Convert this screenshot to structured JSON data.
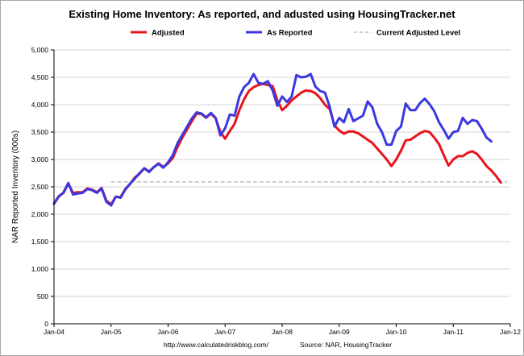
{
  "chart_data": {
    "type": "line",
    "title": "Existing Home Inventory: As reported, and adusted using HousingTracker.net",
    "xlabel": "",
    "ylabel": "NAR Reported Inventory (000s)",
    "ylim": [
      0,
      5000
    ],
    "yticks": [
      0,
      500,
      1000,
      1500,
      2000,
      2500,
      3000,
      3500,
      4000,
      4500,
      5000
    ],
    "ytick_labels": [
      "0",
      "500",
      "1,000",
      "1,500",
      "2,000",
      "2,500",
      "3,000",
      "3,500",
      "4,000",
      "4,500",
      "5,000"
    ],
    "x_tick_labels": [
      "Jan-04",
      "Jan-05",
      "Jan-06",
      "Jan-07",
      "Jan-08",
      "Jan-09",
      "Jan-10",
      "Jan-11",
      "Jan-12"
    ],
    "x_range": [
      "Jan-04",
      "Jan-12"
    ],
    "grid": true,
    "legend_position": "top",
    "series": [
      {
        "name": "Adjusted",
        "color": "#e8141c",
        "start": "Jan-04",
        "values": [
          2200,
          2330,
          2390,
          2560,
          2390,
          2400,
          2400,
          2470,
          2450,
          2400,
          2480,
          2250,
          2180,
          2320,
          2310,
          2460,
          2550,
          2670,
          2740,
          2840,
          2780,
          2860,
          2930,
          2860,
          2930,
          3030,
          3230,
          3400,
          3550,
          3700,
          3840,
          3830,
          3760,
          3840,
          3750,
          3500,
          3380,
          3520,
          3650,
          3900,
          4100,
          4250,
          4320,
          4360,
          4380,
          4360,
          4340,
          4080,
          3900,
          3980,
          4080,
          4150,
          4220,
          4260,
          4250,
          4210,
          4120,
          4000,
          3920,
          3620,
          3530,
          3470,
          3510,
          3510,
          3480,
          3420,
          3360,
          3300,
          3200,
          3100,
          3000,
          2880,
          3000,
          3160,
          3350,
          3360,
          3420,
          3480,
          3520,
          3500,
          3400,
          3280,
          3080,
          2890,
          3000,
          3060,
          3060,
          3120,
          3150,
          3100,
          3000,
          2880,
          2800,
          2700,
          2580
        ]
      },
      {
        "name": "As Reported",
        "color": "#3a38e0",
        "start": "Jan-04",
        "values": [
          2190,
          2320,
          2400,
          2570,
          2360,
          2380,
          2390,
          2460,
          2440,
          2390,
          2470,
          2230,
          2160,
          2320,
          2300,
          2450,
          2560,
          2650,
          2750,
          2840,
          2770,
          2860,
          2920,
          2850,
          2950,
          3080,
          3300,
          3450,
          3600,
          3750,
          3860,
          3840,
          3770,
          3850,
          3760,
          3440,
          3570,
          3820,
          3800,
          4150,
          4320,
          4400,
          4560,
          4400,
          4380,
          4430,
          4260,
          3980,
          4150,
          4050,
          4150,
          4540,
          4500,
          4510,
          4560,
          4330,
          4250,
          4220,
          3960,
          3600,
          3760,
          3680,
          3920,
          3700,
          3750,
          3800,
          4060,
          3950,
          3650,
          3500,
          3270,
          3270,
          3520,
          3600,
          4020,
          3900,
          3900,
          4030,
          4110,
          4010,
          3880,
          3680,
          3540,
          3380,
          3500,
          3520,
          3760,
          3650,
          3720,
          3700,
          3560,
          3400,
          3330
        ]
      },
      {
        "name": "Current Adjusted Level",
        "color": "#b0b0b0",
        "style": "dashed",
        "values": [
          2590
        ]
      }
    ]
  },
  "footer": {
    "url": "http://www.calculatedriskblog.com/",
    "source": "Source: NAR, HousingTracker"
  }
}
